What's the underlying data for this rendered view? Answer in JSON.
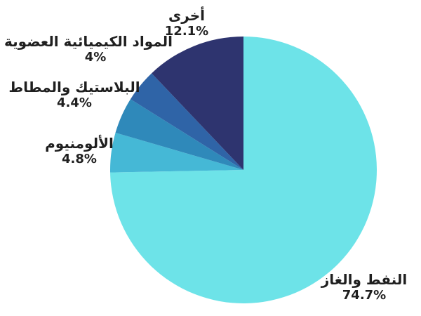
{
  "chart_data": {
    "type": "pie",
    "title": "",
    "legend": "none",
    "direction": "clockwise",
    "start_angle_deg": 0,
    "background_color": "#ffffff",
    "text_color": "#1f1f1f",
    "slices": [
      {
        "label": "النفط والغاز",
        "value": 74.7,
        "pct_label": "74.7%",
        "color": "#6de3e8"
      },
      {
        "label": "الألومنيوم",
        "value": 4.8,
        "pct_label": "4.8%",
        "color": "#45b8d6"
      },
      {
        "label": "البلاستيك والمطاط",
        "value": 4.4,
        "pct_label": "4.4%",
        "color": "#2f89ba"
      },
      {
        "label": "المواد الكيميائية العضوية",
        "value": 4,
        "pct_label": "4%",
        "color": "#2f64a7"
      },
      {
        "label": "أخرى",
        "value": 12.1,
        "pct_label": "12.1%",
        "color": "#2e346f"
      }
    ]
  }
}
